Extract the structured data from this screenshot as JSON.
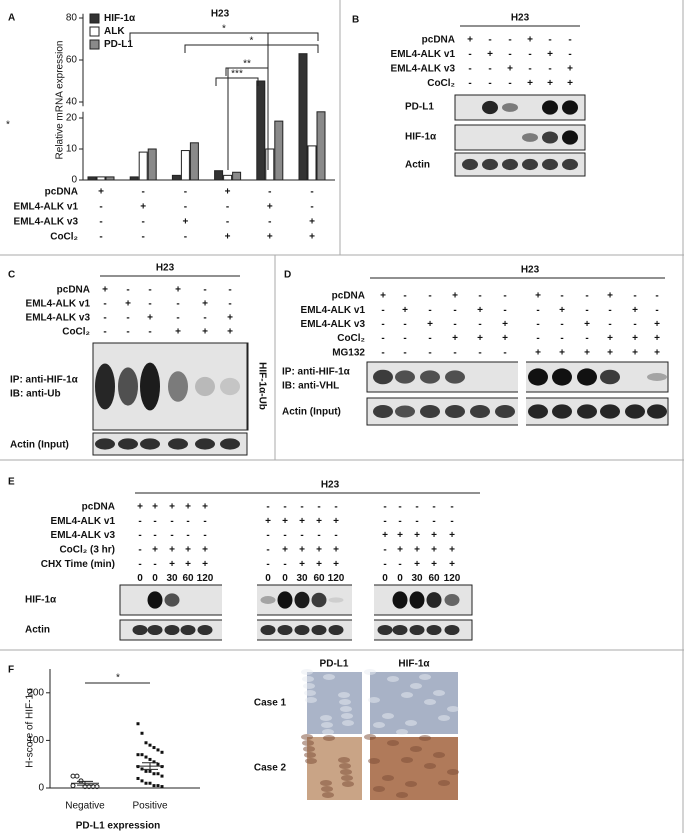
{
  "letters": [
    "A",
    "B",
    "C",
    "D",
    "E",
    "F"
  ],
  "chart_data": [
    {
      "type": "bar",
      "title": "H23",
      "y_label": "Relative mRNA expression",
      "categories": [
        null,
        null,
        null,
        null,
        null,
        null
      ],
      "series": [
        {
          "name": "HIF-1α",
          "color": "#333333",
          "values": [
            1,
            1,
            1.5,
            3,
            50,
            63
          ]
        },
        {
          "name": "ALK",
          "color": "#ffffff",
          "values": [
            1,
            9,
            9.5,
            1.5,
            10,
            11
          ]
        },
        {
          "name": "PD-L1",
          "color": "#8a8a8a",
          "values": [
            1,
            10,
            12,
            2.5,
            19,
            22
          ]
        }
      ],
      "ylim": [
        0,
        82
      ],
      "ybreak": [
        22,
        38
      ],
      "yticks": [
        0,
        10,
        20,
        40,
        60,
        80
      ],
      "annotations": [
        "*",
        "*",
        "**",
        "***"
      ],
      "side_mark": "*",
      "conditions": [
        {
          "label": "pcDNA",
          "signs": [
            "+",
            "-",
            "-",
            "+",
            "-",
            "-"
          ]
        },
        {
          "label": "EML4-ALK v1",
          "signs": [
            "-",
            "+",
            "-",
            "-",
            "+",
            "-"
          ]
        },
        {
          "label": "EML4-ALK v3",
          "signs": [
            "-",
            "-",
            "+",
            "-",
            "-",
            "+"
          ]
        },
        {
          "label": "CoCl₂",
          "signs": [
            "-",
            "-",
            "-",
            "+",
            "+",
            "+"
          ]
        }
      ]
    },
    {
      "type": "scatter",
      "title": "*",
      "y_label": "H-score of HIF-1α",
      "x_label": "PD-L1 expression",
      "categories": [
        "Negative",
        "Positive"
      ],
      "values": [
        [
          25,
          25,
          15,
          3,
          3,
          3,
          3,
          5
        ],
        [
          135,
          115,
          95,
          90,
          85,
          80,
          75,
          70,
          70,
          65,
          60,
          55,
          50,
          45,
          45,
          40,
          35,
          35,
          30,
          30,
          25,
          20,
          15,
          10,
          10,
          5,
          5,
          3
        ]
      ],
      "means": [
        10,
        46
      ],
      "sem": [
        4,
        7
      ],
      "ylim": [
        0,
        250
      ],
      "yticks": [
        0,
        100,
        200
      ]
    }
  ],
  "blot_b": {
    "title": "H23",
    "rows": [
      {
        "label": "pcDNA",
        "signs": [
          "+",
          "-",
          "-",
          "+",
          "-",
          "-"
        ]
      },
      {
        "label": "EML4-ALK v1",
        "signs": [
          "-",
          "+",
          "-",
          "-",
          "+",
          "-"
        ]
      },
      {
        "label": "EML4-ALK v3",
        "signs": [
          "-",
          "-",
          "+",
          "-",
          "-",
          "+"
        ]
      },
      {
        "label": "CoCl₂",
        "signs": [
          "-",
          "-",
          "-",
          "+",
          "+",
          "+"
        ]
      }
    ],
    "bands": [
      "PD-L1",
      "HIF-1α",
      "Actin"
    ]
  },
  "blot_c": {
    "title": "H23",
    "rows": [
      {
        "label": "pcDNA",
        "signs": [
          "+",
          "-",
          "-",
          "+",
          "-",
          "-"
        ]
      },
      {
        "label": "EML4-ALK v1",
        "signs": [
          "-",
          "+",
          "-",
          "-",
          "+",
          "-"
        ]
      },
      {
        "label": "EML4-ALK v3",
        "signs": [
          "-",
          "-",
          "+",
          "-",
          "-",
          "+"
        ]
      },
      {
        "label": "CoCl₂",
        "signs": [
          "-",
          "-",
          "-",
          "+",
          "+",
          "+"
        ]
      }
    ],
    "ip": "IP: anti-HIF-1α",
    "ib": "IB: anti-Ub",
    "bracket": "HIF-1α-Ub",
    "actin": "Actin (Input)"
  },
  "blot_d": {
    "title": "H23",
    "rows": [
      {
        "label": "pcDNA",
        "signs": [
          "+",
          "-",
          "-",
          "+",
          "-",
          "-",
          "+",
          "-",
          "-",
          "+",
          "-",
          "-"
        ]
      },
      {
        "label": "EML4-ALK v1",
        "signs": [
          "-",
          "+",
          "-",
          "-",
          "+",
          "-",
          "-",
          "+",
          "-",
          "-",
          "+",
          "-"
        ]
      },
      {
        "label": "EML4-ALK v3",
        "signs": [
          "-",
          "-",
          "+",
          "-",
          "-",
          "+",
          "-",
          "-",
          "+",
          "-",
          "-",
          "+"
        ]
      },
      {
        "label": "CoCl₂",
        "signs": [
          "-",
          "-",
          "-",
          "+",
          "+",
          "+",
          "-",
          "-",
          "-",
          "+",
          "+",
          "+"
        ]
      },
      {
        "label": "MG132",
        "signs": [
          "-",
          "-",
          "-",
          "-",
          "-",
          "-",
          "+",
          "+",
          "+",
          "+",
          "+",
          "+"
        ]
      }
    ],
    "ip": "IP: anti-HIF-1α",
    "ib": "IB: anti-VHL",
    "actin": "Actin (Input)"
  },
  "blot_e": {
    "title": "H23",
    "rows": [
      {
        "label": "pcDNA",
        "signs": [
          "+",
          "+",
          "+",
          "+",
          "+",
          "-",
          "-",
          "-",
          "-",
          "-",
          "-",
          "-",
          "-",
          "-",
          "-"
        ]
      },
      {
        "label": "EML4-ALK v1",
        "signs": [
          "-",
          "-",
          "-",
          "-",
          "-",
          "+",
          "+",
          "+",
          "+",
          "+",
          "-",
          "-",
          "-",
          "-",
          "-"
        ]
      },
      {
        "label": "EML4-ALK v3",
        "signs": [
          "-",
          "-",
          "-",
          "-",
          "-",
          "-",
          "-",
          "-",
          "-",
          "-",
          "+",
          "+",
          "+",
          "+",
          "+"
        ]
      },
      {
        "label": "CoCl₂ (3 hr)",
        "signs": [
          "-",
          "+",
          "+",
          "+",
          "+",
          "-",
          "+",
          "+",
          "+",
          "+",
          "-",
          "+",
          "+",
          "+",
          "+"
        ]
      },
      {
        "label": "CHX Time (min)",
        "signs": [
          "-",
          "-",
          "+",
          "+",
          "+",
          "-",
          "-",
          "+",
          "+",
          "+",
          "-",
          "-",
          "+",
          "+",
          "+"
        ]
      },
      {
        "label": null,
        "signs": [
          "0",
          "0",
          "30",
          "60",
          "120",
          "0",
          "0",
          "30",
          "60",
          "120",
          "0",
          "0",
          "30",
          "60",
          "120"
        ]
      }
    ],
    "bands": [
      "HIF-1α",
      "Actin"
    ]
  },
  "ihc": {
    "columns": [
      "PD-L1",
      "HIF-1α"
    ],
    "rows": [
      "Case 1",
      "Case 2"
    ]
  }
}
